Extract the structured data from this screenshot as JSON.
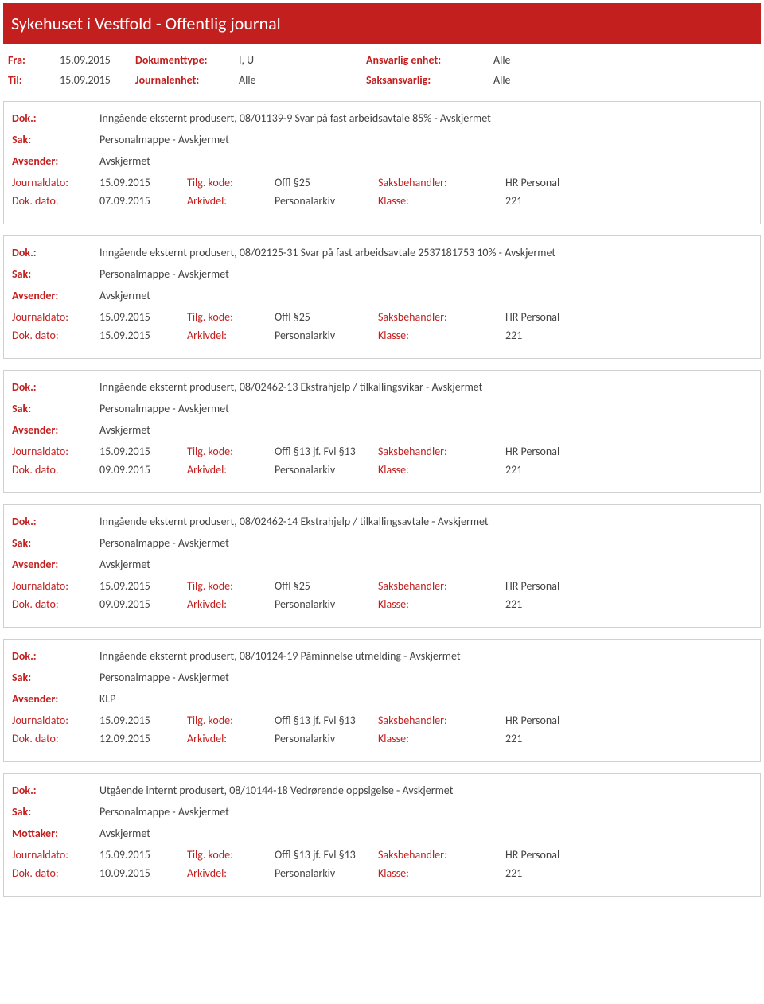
{
  "header": {
    "title": "Sykehuset i Vestfold - Offentlig journal"
  },
  "meta": {
    "fra_label": "Fra:",
    "fra_val": "15.09.2015",
    "til_label": "Til:",
    "til_val": "15.09.2015",
    "doktype_label": "Dokumenttype:",
    "doktype_val": "I, U",
    "journalenhet_label": "Journalenhet:",
    "journalenhet_val": "Alle",
    "ansvarlig_label": "Ansvarlig enhet:",
    "ansvarlig_val": "Alle",
    "saksansvarlig_label": "Saksansvarlig:",
    "saksansvarlig_val": "Alle"
  },
  "labels": {
    "dok": "Dok.:",
    "sak": "Sak:",
    "avsender": "Avsender:",
    "mottaker": "Mottaker:",
    "journaldato": "Journaldato:",
    "dokdato": "Dok. dato:",
    "tilgkode": "Tilg. kode:",
    "arkivdel": "Arkivdel:",
    "saksbehandler": "Saksbehandler:",
    "klasse": "Klasse:"
  },
  "entries": [
    {
      "dok": "Inngående eksternt produsert, 08/01139-9 Svar på fast arbeidsavtale 85% - Avskjermet",
      "sak": "Personalmappe - Avskjermet",
      "party_label": "Avsender:",
      "party": "Avskjermet",
      "journaldato": "15.09.2015",
      "dokdato": "07.09.2015",
      "tilgkode": "Offl §25",
      "arkivdel": "Personalarkiv",
      "saksbehandler": "HR Personal",
      "klasse": "221"
    },
    {
      "dok": "Inngående eksternt produsert, 08/02125-31 Svar på fast arbeidsavtale 2537181753 10% - Avskjermet",
      "sak": "Personalmappe - Avskjermet",
      "party_label": "Avsender:",
      "party": "Avskjermet",
      "journaldato": "15.09.2015",
      "dokdato": "15.09.2015",
      "tilgkode": "Offl §25",
      "arkivdel": "Personalarkiv",
      "saksbehandler": "HR Personal",
      "klasse": "221"
    },
    {
      "dok": "Inngående eksternt produsert, 08/02462-13 Ekstrahjelp / tilkallingsvikar - Avskjermet",
      "sak": "Personalmappe - Avskjermet",
      "party_label": "Avsender:",
      "party": "Avskjermet",
      "journaldato": "15.09.2015",
      "dokdato": "09.09.2015",
      "tilgkode": "Offl §13 jf. Fvl §13",
      "arkivdel": "Personalarkiv",
      "saksbehandler": "HR Personal",
      "klasse": "221"
    },
    {
      "dok": "Inngående eksternt produsert, 08/02462-14 Ekstrahjelp / tilkallingsavtale - Avskjermet",
      "sak": "Personalmappe - Avskjermet",
      "party_label": "Avsender:",
      "party": "Avskjermet",
      "journaldato": "15.09.2015",
      "dokdato": "09.09.2015",
      "tilgkode": "Offl §25",
      "arkivdel": "Personalarkiv",
      "saksbehandler": "HR Personal",
      "klasse": "221"
    },
    {
      "dok": "Inngående eksternt produsert, 08/10124-19 Påminnelse utmelding - Avskjermet",
      "sak": "Personalmappe - Avskjermet",
      "party_label": "Avsender:",
      "party": "KLP",
      "journaldato": "15.09.2015",
      "dokdato": "12.09.2015",
      "tilgkode": "Offl §13 jf. Fvl §13",
      "arkivdel": "Personalarkiv",
      "saksbehandler": "HR Personal",
      "klasse": "221"
    },
    {
      "dok": "Utgående internt produsert, 08/10144-18 Vedrørende oppsigelse - Avskjermet",
      "sak": "Personalmappe - Avskjermet",
      "party_label": "Mottaker:",
      "party": "Avskjermet",
      "journaldato": "15.09.2015",
      "dokdato": "10.09.2015",
      "tilgkode": "Offl §13 jf. Fvl §13",
      "arkivdel": "Personalarkiv",
      "saksbehandler": "HR Personal",
      "klasse": "221"
    }
  ]
}
